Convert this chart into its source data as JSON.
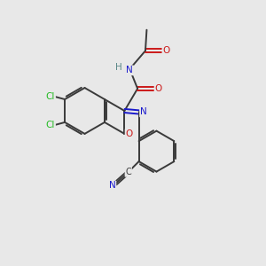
{
  "background_color": "#e8e8e8",
  "bond_color": "#3a3a3a",
  "colors": {
    "N": "#1a1acc",
    "O": "#cc1a1a",
    "Cl": "#22bb22",
    "C": "#3a3a3a",
    "H": "#5a8888"
  }
}
